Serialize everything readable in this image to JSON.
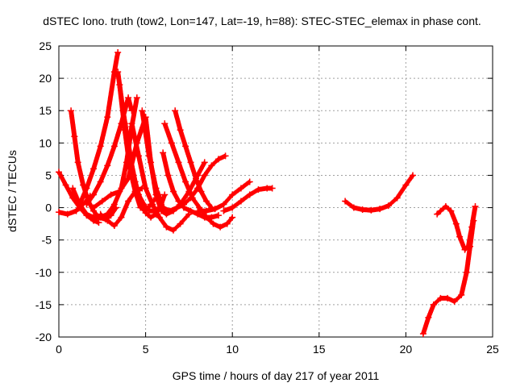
{
  "chart_data": {
    "type": "scatter",
    "title": "dSTEC Iono. truth (tow2, Lon=147, Lat=-19, h=88): STEC-STEC_elemax in phase cont.",
    "xlabel": "GPS time / hours of day 217 of year 2011",
    "ylabel": "dSTEC  / TECUs",
    "xlim": [
      0,
      25
    ],
    "ylim": [
      -20,
      25
    ],
    "xticks": [
      0,
      5,
      10,
      15,
      20,
      25
    ],
    "yticks": [
      -20,
      -15,
      -10,
      -5,
      0,
      5,
      10,
      15,
      20,
      25
    ],
    "grid": true,
    "marker": "+",
    "color": "#ff0000",
    "series": [
      {
        "x": [
          0.0,
          0.4,
          0.8,
          1.2,
          1.6,
          2.0,
          2.3
        ],
        "y": [
          5.5,
          3.5,
          1.5,
          0.0,
          -1.2,
          -2.0,
          -2.3
        ]
      },
      {
        "x": [
          0.0,
          0.5,
          1.0,
          1.4,
          1.8
        ],
        "y": [
          -0.7,
          -1.0,
          -0.5,
          0.5,
          1.8
        ]
      },
      {
        "x": [
          0.7,
          0.9,
          1.1,
          1.4,
          1.7,
          2.0,
          2.3,
          2.7,
          3.0,
          3.3
        ],
        "y": [
          15.0,
          11.0,
          7.0,
          3.5,
          1.0,
          -0.5,
          -1.5,
          -1.8,
          -1.2,
          0.0
        ]
      },
      {
        "x": [
          0.8,
          1.2,
          1.6,
          2.0,
          2.4,
          2.8,
          3.2,
          3.6,
          3.9,
          4.2,
          4.5
        ],
        "y": [
          3.0,
          0.5,
          -1.0,
          -1.5,
          -1.5,
          -1.0,
          0.5,
          3.0,
          7.0,
          12.5,
          17.0
        ]
      },
      {
        "x": [
          1.2,
          1.6,
          2.0,
          2.4,
          2.8,
          3.2,
          3.4
        ],
        "y": [
          0.5,
          3.0,
          6.0,
          9.5,
          14.0,
          21.0,
          24.0
        ]
      },
      {
        "x": [
          1.6,
          2.0,
          2.4,
          2.8,
          3.2,
          3.6,
          4.0,
          4.2
        ],
        "y": [
          0.5,
          2.0,
          4.0,
          6.5,
          9.5,
          13.0,
          17.0,
          15.0
        ]
      },
      {
        "x": [
          2.0,
          2.5,
          3.0,
          3.5,
          4.0,
          4.5,
          5.0
        ],
        "y": [
          0.0,
          1.0,
          2.0,
          2.5,
          4.5,
          10.0,
          14.0
        ]
      },
      {
        "x": [
          2.4,
          2.8,
          3.2,
          3.6,
          4.0,
          4.4,
          4.8
        ],
        "y": [
          -1.0,
          -2.0,
          -2.8,
          -1.5,
          1.0,
          2.5,
          3.0
        ]
      },
      {
        "x": [
          3.4,
          3.7,
          4.0,
          4.3,
          4.6,
          4.9,
          5.2,
          5.5,
          5.8,
          6.0
        ],
        "y": [
          21.0,
          15.0,
          10.0,
          5.0,
          2.0,
          0.5,
          -0.5,
          -0.5,
          0.0,
          0.0
        ]
      },
      {
        "x": [
          3.5,
          3.8,
          4.1,
          4.4,
          4.7,
          5.0,
          5.3,
          5.6,
          5.8
        ],
        "y": [
          19.0,
          12.0,
          6.0,
          2.5,
          0.0,
          -0.5,
          0.5,
          1.5,
          2.0
        ]
      },
      {
        "x": [
          3.8,
          4.1,
          4.4,
          4.7,
          5.0,
          5.3,
          5.6,
          5.9,
          6.1
        ],
        "y": [
          13.0,
          8.0,
          4.0,
          1.0,
          -0.8,
          -1.5,
          -1.0,
          0.5,
          2.0
        ]
      },
      {
        "x": [
          4.2,
          4.6,
          5.0,
          5.4,
          5.8,
          6.2,
          6.6,
          7.0,
          7.5
        ],
        "y": [
          13.0,
          8.0,
          3.0,
          0.5,
          -1.5,
          -3.0,
          -3.5,
          -2.5,
          -1.0
        ]
      },
      {
        "x": [
          4.8,
          5.2,
          5.6,
          6.0,
          6.4,
          6.8,
          7.2
        ],
        "y": [
          15.0,
          8.0,
          3.0,
          0.0,
          -0.5,
          0.0,
          0.5
        ]
      },
      {
        "x": [
          5.0,
          5.3,
          5.6,
          5.9,
          6.2,
          6.6,
          7.0,
          7.5,
          8.0,
          8.4
        ],
        "y": [
          14.0,
          7.0,
          2.0,
          -0.5,
          -1.0,
          -0.5,
          0.5,
          2.5,
          5.0,
          7.0
        ]
      },
      {
        "x": [
          6.0,
          6.3,
          6.6,
          6.9,
          7.2,
          7.6,
          8.0,
          8.4,
          8.8,
          9.2
        ],
        "y": [
          8.5,
          5.0,
          2.5,
          1.0,
          0.0,
          -0.5,
          -1.0,
          -1.5,
          -1.5,
          -1.2
        ]
      },
      {
        "x": [
          6.1,
          6.5,
          6.9,
          7.3,
          7.7,
          8.1,
          8.5,
          8.9,
          9.3,
          9.7,
          10.0
        ],
        "y": [
          13.0,
          10.0,
          7.0,
          4.0,
          1.5,
          0.0,
          -1.5,
          -2.5,
          -3.0,
          -2.5,
          -1.5
        ]
      },
      {
        "x": [
          6.7,
          7.0,
          7.3,
          7.6,
          7.9,
          8.2,
          8.5,
          8.8
        ],
        "y": [
          15.0,
          12.0,
          9.5,
          7.0,
          4.5,
          2.5,
          1.0,
          0.0
        ]
      },
      {
        "x": [
          6.8,
          7.2,
          7.6,
          8.0,
          8.4,
          8.8,
          9.2,
          9.6
        ],
        "y": [
          0.0,
          0.5,
          1.5,
          3.0,
          5.0,
          6.5,
          7.5,
          8.0
        ]
      },
      {
        "x": [
          8.0,
          8.5,
          9.0,
          9.5,
          10.0,
          10.5,
          11.0
        ],
        "y": [
          -0.5,
          -0.5,
          -0.2,
          0.5,
          2.0,
          3.0,
          4.0
        ]
      },
      {
        "x": [
          9.5,
          10.0,
          10.5,
          11.0,
          11.5,
          12.0,
          12.3
        ],
        "y": [
          -0.5,
          0.0,
          1.0,
          2.0,
          2.8,
          3.0,
          3.0
        ]
      },
      {
        "x": [
          16.5,
          17.0,
          17.5,
          18.0,
          18.5,
          19.0,
          19.5,
          20.0,
          20.4
        ],
        "y": [
          1.0,
          0.0,
          -0.3,
          -0.4,
          -0.2,
          0.3,
          1.5,
          3.5,
          5.0
        ]
      },
      {
        "x": [
          21.8,
          22.0,
          22.3,
          22.6,
          22.9,
          23.1,
          23.4,
          23.6,
          23.8,
          24.0
        ],
        "y": [
          -1.0,
          -0.5,
          0.2,
          -0.5,
          -2.5,
          -4.5,
          -6.5,
          -6.0,
          -3.0,
          0.2
        ]
      },
      {
        "x": [
          21.0,
          21.3,
          21.6,
          22.0,
          22.4,
          22.8,
          23.2,
          23.5,
          23.7,
          23.9
        ],
        "y": [
          -19.5,
          -17.0,
          -15.0,
          -14.0,
          -14.0,
          -14.5,
          -13.5,
          -10.0,
          -6.0,
          -2.0
        ]
      }
    ]
  }
}
